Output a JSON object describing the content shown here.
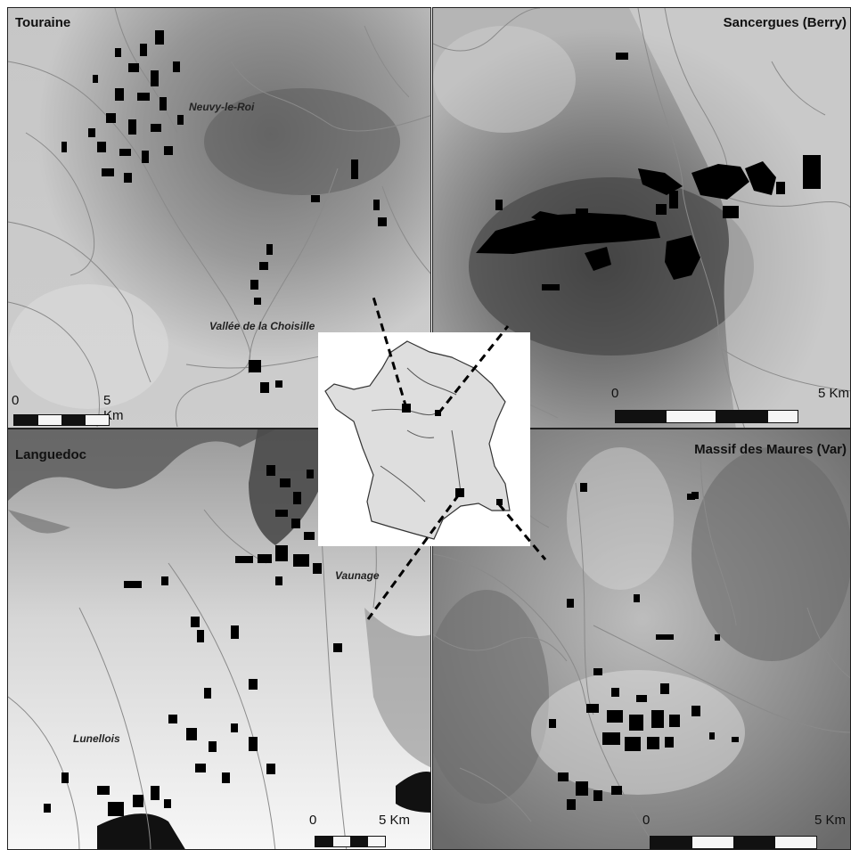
{
  "panels": {
    "touraine": {
      "title": "Touraine",
      "places": [
        "Neuvy-le-Roi",
        "Vallée de la Choisille"
      ],
      "scale": {
        "zero": "0",
        "end": "5 Km"
      }
    },
    "sancergues": {
      "title": "Sancergues (Berry)",
      "places": [],
      "scale": {
        "zero": "0",
        "end": "5 Km"
      }
    },
    "languedoc": {
      "title": "Languedoc",
      "places": [
        "Vaunage",
        "Lunellois"
      ],
      "scale": {
        "zero": "0",
        "end": "5 Km"
      }
    },
    "maures": {
      "title": "Massif des Maures (Var)",
      "places": [],
      "scale": {
        "zero": "0",
        "end": "5 Km"
      }
    }
  },
  "colors": {
    "parcels": "#000000",
    "rivers": "#8a8a8a",
    "dem_high": "#5e5e5e",
    "dem_low": "#f2f2f2",
    "france_fill": "#dedede",
    "frame": "#222222"
  }
}
